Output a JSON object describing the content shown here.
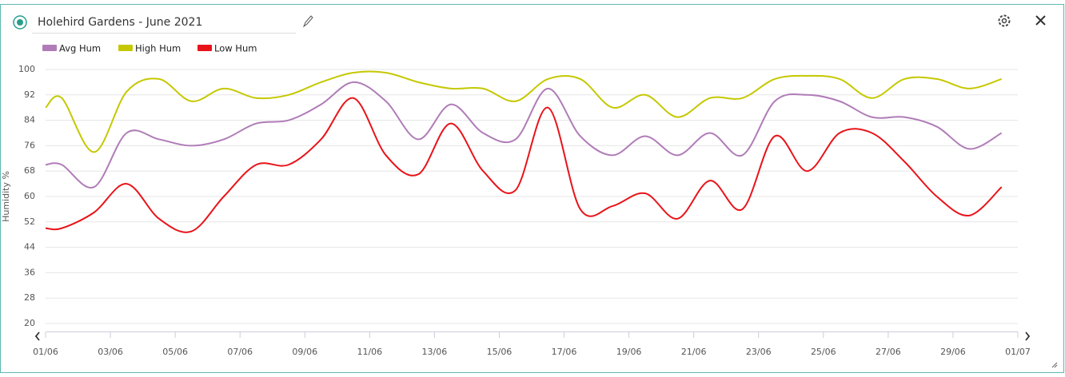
{
  "chart_data": {
    "type": "spline",
    "title": "Holehird Gardens - June 2021",
    "y_label": "Humidity %",
    "x": [
      0,
      0.5,
      1.5,
      2.5,
      3.5,
      4.5,
      5.5,
      6.5,
      7.5,
      8.5,
      9.5,
      10.5,
      11.5,
      12.5,
      13.5,
      14.5,
      15.5,
      16.5,
      17.5,
      18.5,
      19.5,
      20.5,
      21.5,
      22.5,
      23.5,
      24.5,
      25.5,
      26.5,
      27.5,
      28.5,
      29.5
    ],
    "series": [
      {
        "name": "Avg Hum",
        "color": "#b07cb8",
        "values": [
          70,
          70,
          63,
          80,
          78,
          76,
          78,
          83,
          84,
          89,
          96,
          90,
          78,
          89,
          80,
          78,
          94,
          79,
          73,
          79,
          73,
          80,
          73,
          90,
          92,
          90,
          85,
          85,
          82,
          75,
          80
        ]
      },
      {
        "name": "High Hum",
        "color": "#c5c800",
        "values": [
          88,
          91,
          74,
          93,
          97,
          90,
          94,
          91,
          92,
          96,
          99,
          99,
          96,
          94,
          94,
          90,
          97,
          97,
          88,
          92,
          85,
          91,
          91,
          97,
          98,
          97,
          91,
          97,
          97,
          94,
          97
        ]
      },
      {
        "name": "Low Hum",
        "color": "#e8141a",
        "values": [
          50,
          50,
          55,
          64,
          53,
          49,
          60,
          70,
          70,
          78,
          91,
          73,
          67,
          83,
          68,
          62,
          88,
          56,
          57,
          61,
          53,
          65,
          56,
          79,
          68,
          80,
          80,
          71,
          60,
          54,
          63
        ]
      }
    ],
    "xlim": [
      0,
      30
    ],
    "xticks": [
      {
        "value": 0,
        "label": "01/06"
      },
      {
        "value": 2,
        "label": "03/06"
      },
      {
        "value": 4,
        "label": "05/06"
      },
      {
        "value": 6,
        "label": "07/06"
      },
      {
        "value": 8,
        "label": "09/06"
      },
      {
        "value": 10,
        "label": "11/06"
      },
      {
        "value": 12,
        "label": "13/06"
      },
      {
        "value": 14,
        "label": "15/06"
      },
      {
        "value": 16,
        "label": "17/06"
      },
      {
        "value": 18,
        "label": "19/06"
      },
      {
        "value": 20,
        "label": "21/06"
      },
      {
        "value": 22,
        "label": "23/06"
      },
      {
        "value": 24,
        "label": "25/06"
      },
      {
        "value": 26,
        "label": "27/06"
      },
      {
        "value": 28,
        "label": "29/06"
      },
      {
        "value": 30,
        "label": "01/07"
      }
    ],
    "ylim": [
      20,
      100
    ],
    "yticks": [
      20,
      28,
      36,
      44,
      52,
      60,
      68,
      76,
      84,
      92,
      100
    ],
    "grid": true,
    "legend": "top-left"
  }
}
